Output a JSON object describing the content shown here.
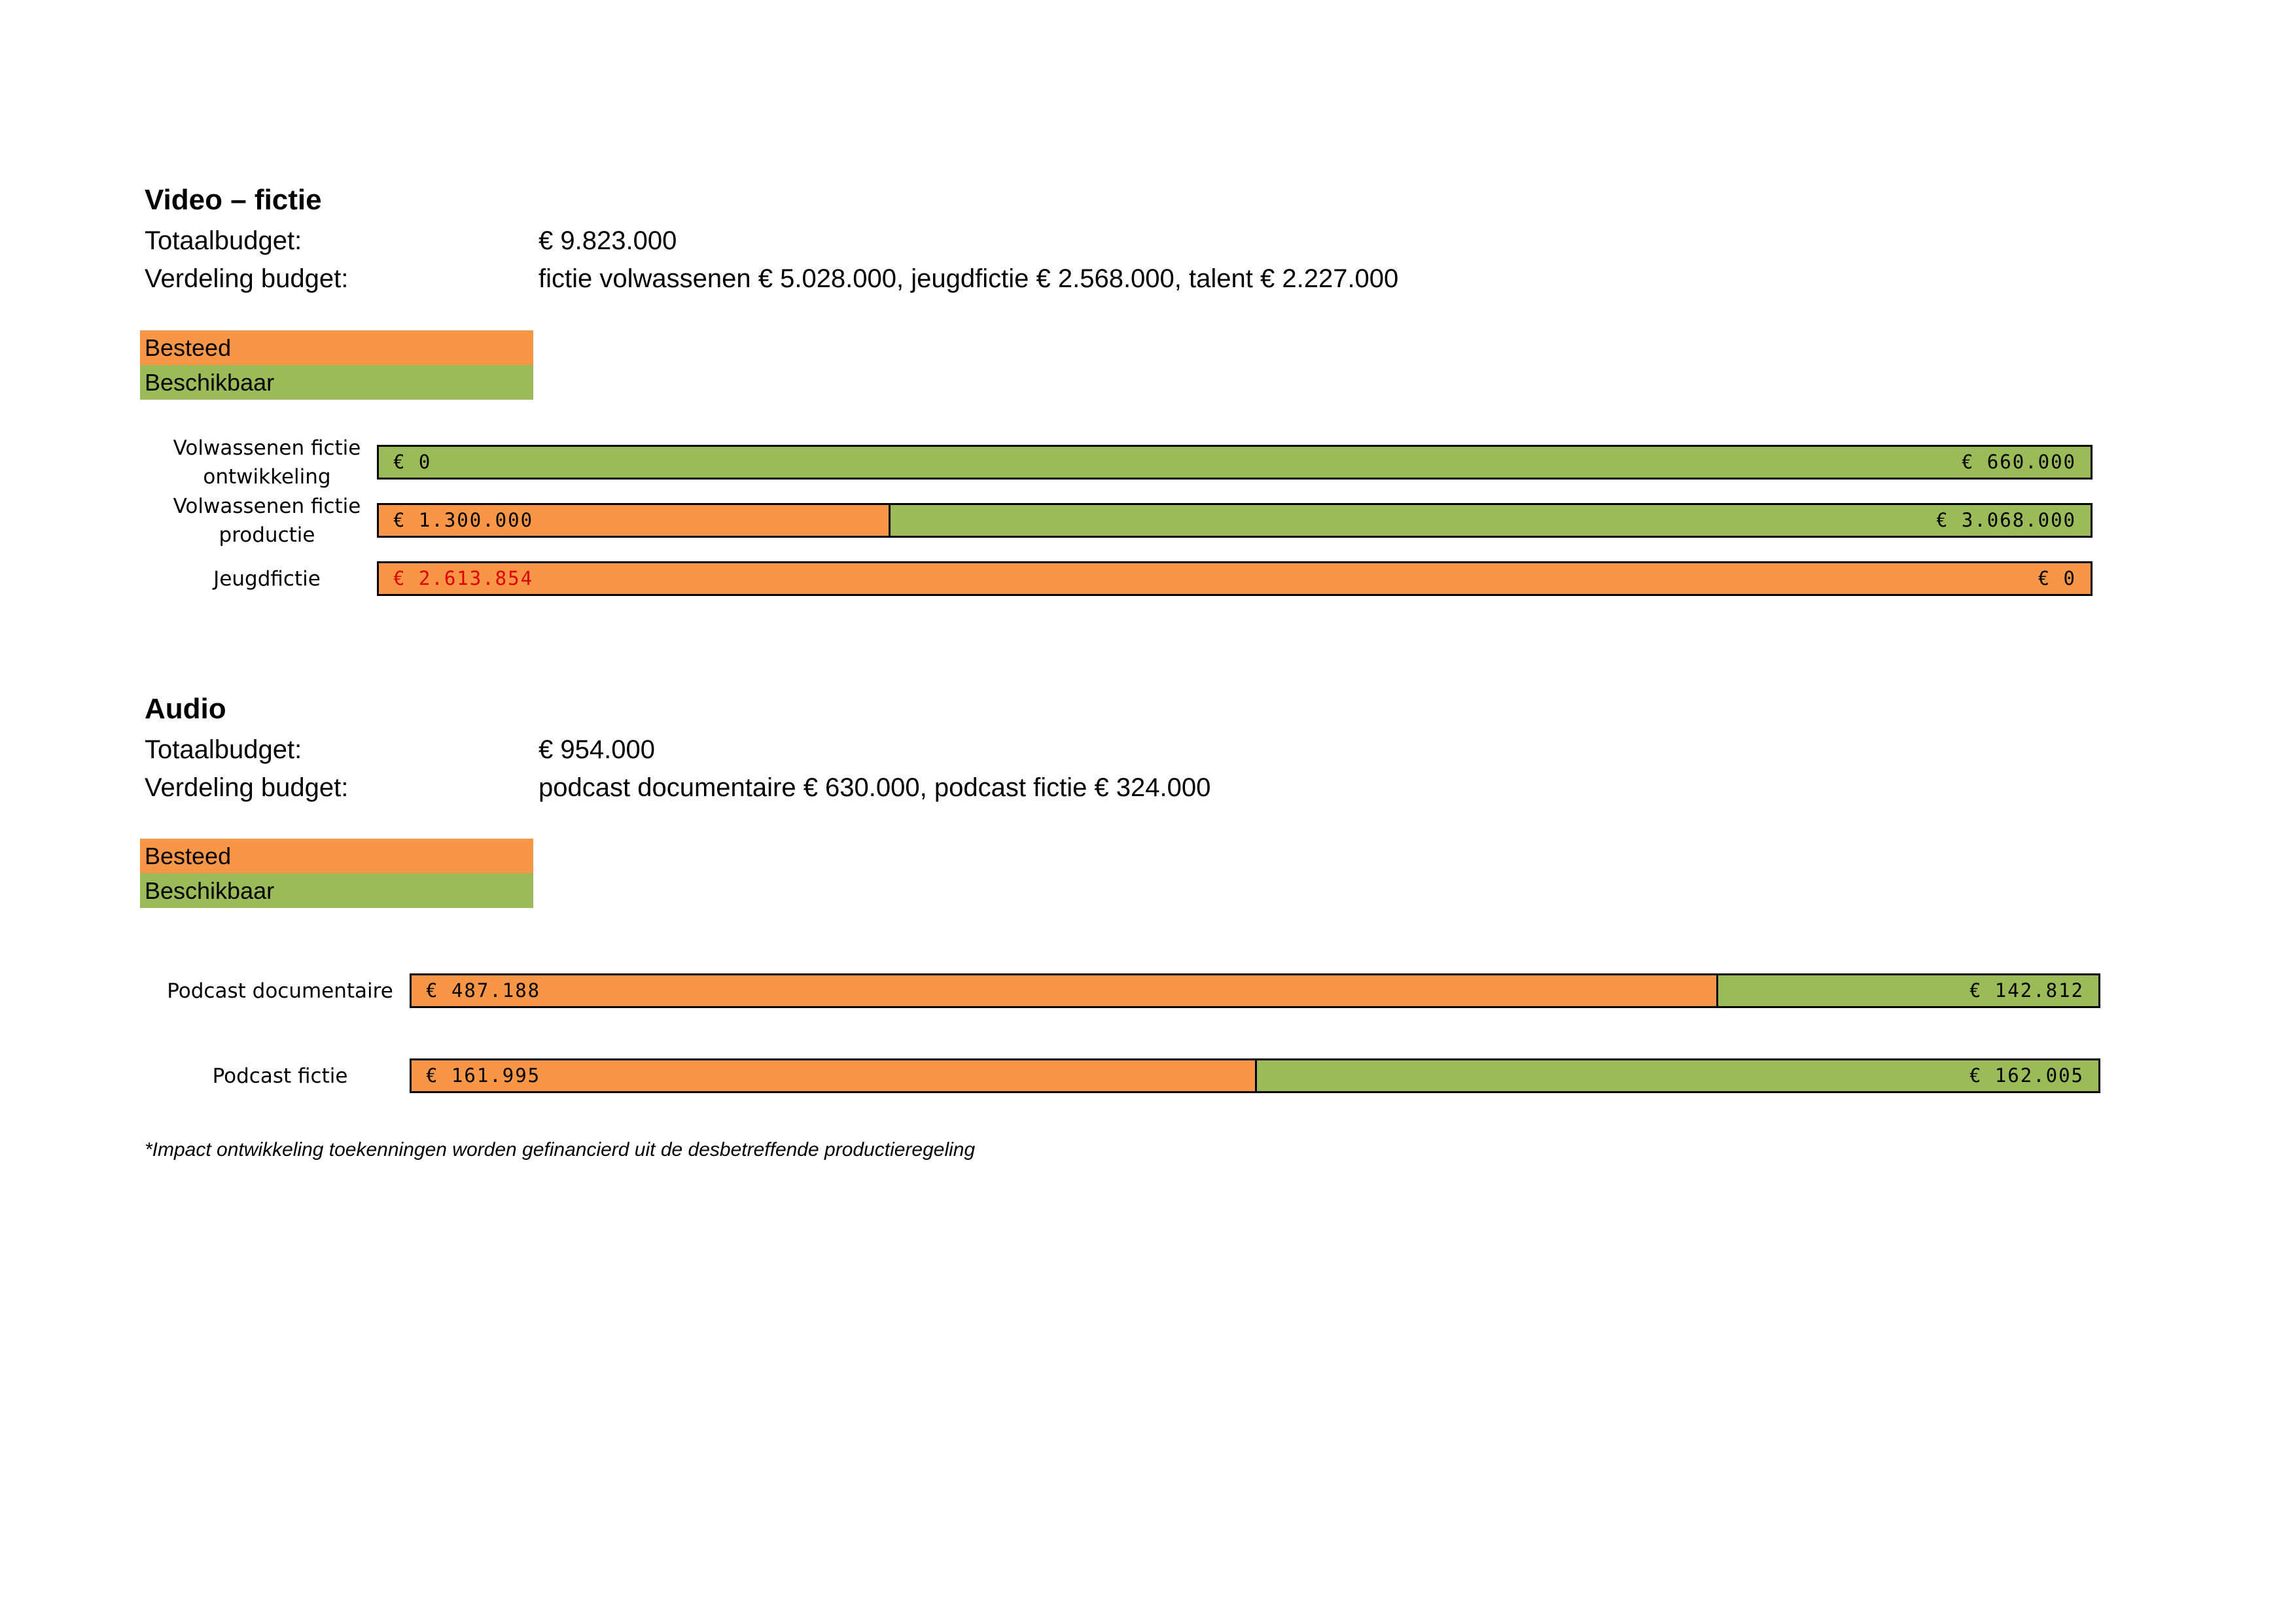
{
  "colors": {
    "spent": "#F79646",
    "available": "#9BBB59",
    "overspent_text": "#E00000",
    "border": "#000000"
  },
  "sections": [
    {
      "title": "Video – fictie",
      "totaal_label": "Totaalbudget:",
      "totaal_value": "€ 9.823.000",
      "verdeling_label": "Verdeling budget:",
      "verdeling_value": "fictie volwassenen € 5.028.000, jeugdfictie € 2.568.000, talent € 2.227.000",
      "legend": {
        "spent": "Besteed",
        "available": "Beschikbaar"
      }
    },
    {
      "title": "Audio",
      "totaal_label": "Totaalbudget:",
      "totaal_value": "€ 954.000",
      "verdeling_label": "Verdeling budget:",
      "verdeling_value": "podcast documentaire € 630.000, podcast fictie € 324.000",
      "legend": {
        "spent": "Besteed",
        "available": "Beschikbaar"
      }
    }
  ],
  "chart_data": [
    {
      "type": "bar",
      "orientation": "horizontal",
      "stacked": true,
      "categories": [
        [
          "Volwassenen fictie",
          "ontwikkeling"
        ],
        [
          "Volwassenen fictie",
          "productie"
        ],
        [
          "Jeugdfictie"
        ]
      ],
      "series": [
        {
          "name": "Besteed",
          "values": [
            0,
            1300000,
            2613854
          ],
          "labels": [
            "€ 0",
            "€ 1.300.000",
            "€ 2.613.854"
          ]
        },
        {
          "name": "Beschikbaar",
          "values": [
            660000,
            3068000,
            0
          ],
          "labels": [
            "€ 660.000",
            "€ 3.068.000",
            "€ 0"
          ]
        }
      ],
      "over_budget": [
        false,
        false,
        true
      ]
    },
    {
      "type": "bar",
      "orientation": "horizontal",
      "stacked": true,
      "categories": [
        [
          "Podcast documentaire"
        ],
        [
          "Podcast fictie"
        ]
      ],
      "series": [
        {
          "name": "Besteed",
          "values": [
            487188,
            161995
          ],
          "labels": [
            "€ 487.188",
            "€ 161.995"
          ]
        },
        {
          "name": "Beschikbaar",
          "values": [
            142812,
            162005
          ],
          "labels": [
            "€ 142.812",
            "€ 162.005"
          ]
        }
      ],
      "over_budget": [
        false,
        false
      ]
    }
  ],
  "footnote": "*Impact ontwikkeling toekenningen worden gefinancierd uit de desbetreffende productieregeling"
}
